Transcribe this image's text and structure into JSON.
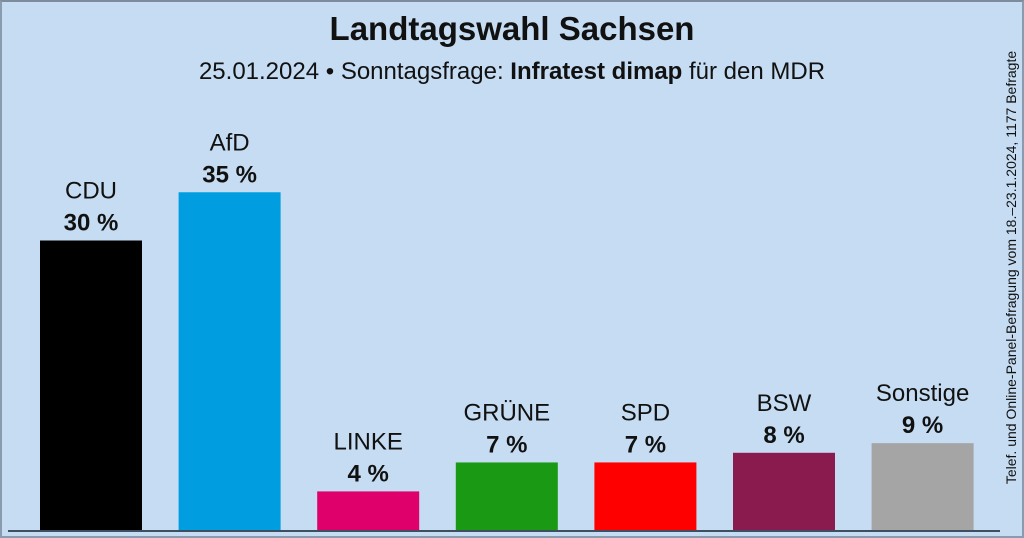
{
  "chart_data": {
    "type": "bar",
    "title": "Landtagswahl Sachsen",
    "subtitle": {
      "date": "25.01.2024",
      "separator": "•",
      "label": "Sonntagsfrage:",
      "institute": "Infratest dimap",
      "client": "für den MDR"
    },
    "categories": [
      "CDU",
      "AfD",
      "LINKE",
      "GRÜNE",
      "SPD",
      "BSW",
      "Sonstige"
    ],
    "values": [
      30,
      35,
      4,
      7,
      7,
      8,
      9
    ],
    "value_labels": [
      "30 %",
      "35 %",
      "4 %",
      "7 %",
      "7 %",
      "8 %",
      "9 %"
    ],
    "colors": [
      "#000000",
      "#009ee0",
      "#e0006b",
      "#1a9a14",
      "#ff0000",
      "#8a1b4f",
      "#a5a5a5"
    ],
    "unit": "%",
    "xlabel": "",
    "ylabel": "",
    "ylim": [
      0,
      37
    ],
    "grid": false,
    "legend": "none",
    "note": "Telef. und Online-Panel-Befragung vom 18.–23.1.2024, 1177 Befragte"
  }
}
